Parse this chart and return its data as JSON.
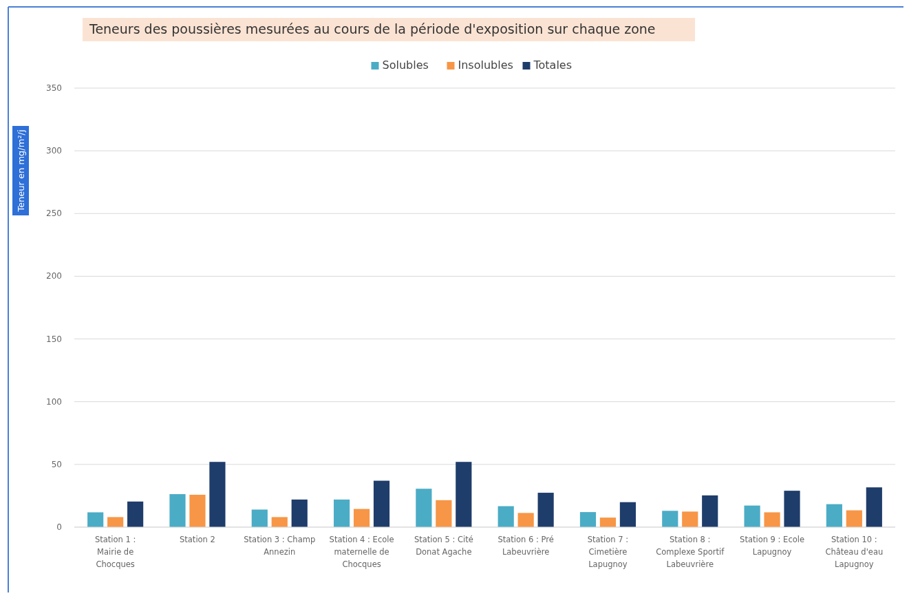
{
  "chart_data": {
    "type": "bar",
    "title": "Teneurs des poussières mesurées au cours de la période d'exposition sur chaque zone",
    "ylabel": "Teneur en mg/m²/j",
    "categories": [
      "Station 1 : Mairie de Chocques",
      "Station 2",
      "Station 3 : Champ Annezin",
      "Station 4 : Ecole maternelle de Chocques",
      "Station 5 : Cité Donat Agache",
      "Station 6 : Pré Labeuvrière",
      "Station 7 : Cimetière Lapugnoy",
      "Station 8 : Complexe Sportif Labeuvrière",
      "Station 9 : Ecole Lapugnoy",
      "Station 10 : Château d'eau Lapugnoy"
    ],
    "series": [
      {
        "name": "Solubles",
        "color": "#4bacc6",
        "values": [
          11.8,
          26.3,
          14,
          22,
          30.6,
          16.7,
          12,
          13,
          17.2,
          18.3
        ]
      },
      {
        "name": "Insolubles",
        "color": "#f79646",
        "values": [
          8,
          25.8,
          8,
          14.5,
          21.5,
          11.3,
          7.6,
          12.4,
          11.8,
          13.4
        ]
      },
      {
        "name": "Totales",
        "color": "#1f3d6b",
        "values": [
          20.4,
          52,
          22,
          37,
          52,
          27.4,
          19.9,
          25.3,
          29,
          31.7
        ]
      }
    ],
    "ylim": [
      0,
      350
    ],
    "yticks": [
      0,
      50,
      100,
      150,
      200,
      250,
      300,
      350
    ],
    "grid": "y",
    "legend": "top"
  }
}
